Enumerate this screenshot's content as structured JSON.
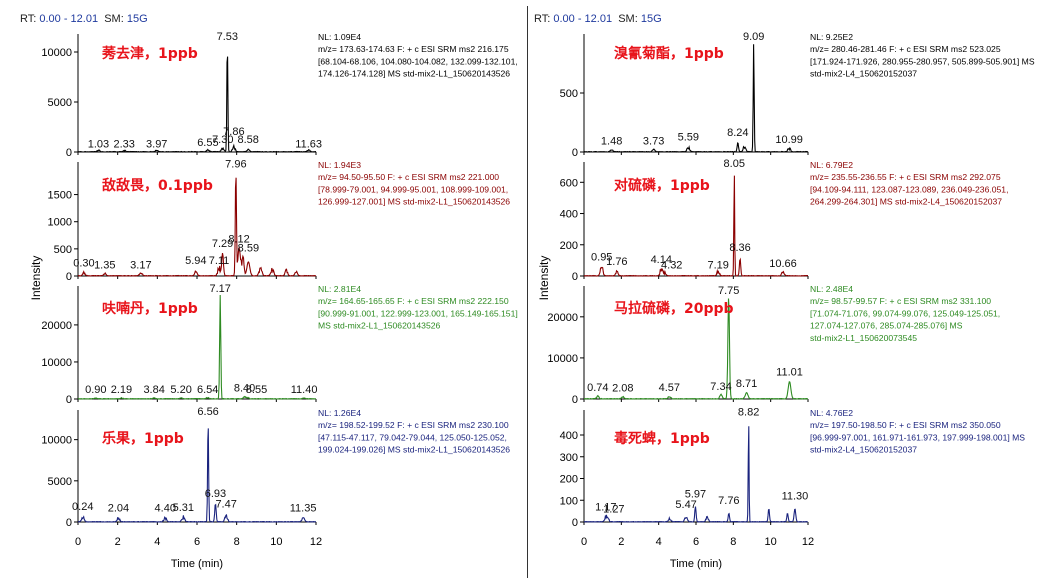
{
  "header": {
    "left": {
      "rt_label": "RT:",
      "rt_value": "0.00 - 12.01",
      "sm_label": "SM:",
      "sm_value": "15G"
    },
    "right": {
      "rt_label": "RT:",
      "rt_value": "0.00 - 12.01",
      "sm_label": "SM:",
      "sm_value": "15G"
    }
  },
  "axes": {
    "left": {
      "ylabel": "Intensity",
      "xlabel": "Time (min)",
      "xticks": [
        0,
        2,
        4,
        6,
        8,
        10,
        12
      ]
    },
    "right": {
      "ylabel": "Intensity",
      "xlabel": "Time (min)",
      "xticks": [
        0,
        2,
        4,
        6,
        8,
        10,
        12
      ]
    }
  },
  "chart_data": [
    {
      "type": "line",
      "column": "left",
      "row": 0,
      "color": "#000000",
      "compound": "莠去津，1ppb",
      "info": [
        "NL: 1.09E4",
        "m/z= 173.63-174.63 F: + c ESI SRM ms2 216.175",
        "[68.104-68.106, 104.080-104.082, 132.099-132.101,",
        "174.126-174.128]  MS std-mix2-L1_150620143526"
      ],
      "ylim": [
        0,
        11800
      ],
      "yticks": [
        0,
        5000,
        10000
      ],
      "xlim": [
        0,
        12
      ],
      "peaks": [
        [
          7.53,
          10900,
          0.035
        ]
      ],
      "noise": [
        [
          1.03,
          140
        ],
        [
          2.33,
          120
        ],
        [
          3.97,
          160
        ],
        [
          6.55,
          210
        ],
        [
          7.3,
          380
        ],
        [
          7.86,
          520
        ],
        [
          8.58,
          250
        ],
        [
          11.63,
          160
        ]
      ],
      "labels": [
        {
          "t": "7.53",
          "x": 7.53,
          "y": 10900
        },
        {
          "t": "1.03",
          "x": 1.03,
          "y": 150
        },
        {
          "t": "2.33",
          "x": 2.33,
          "y": 150
        },
        {
          "t": "3.97",
          "x": 3.97,
          "y": 150
        },
        {
          "t": "6.55",
          "x": 6.55,
          "y": 300
        },
        {
          "t": "7.30",
          "x": 7.3,
          "y": 600
        },
        {
          "t": "7.86",
          "x": 7.86,
          "y": 1400
        },
        {
          "t": "8.58",
          "x": 8.58,
          "y": 600
        },
        {
          "t": "11.63",
          "x": 11.63,
          "y": 150
        }
      ]
    },
    {
      "type": "line",
      "column": "left",
      "row": 1,
      "color": "#8b0000",
      "compound": "敌敌畏，0.1ppb",
      "info": [
        "NL: 1.94E3",
        "m/z= 94.50-95.50 F: + c ESI SRM ms2 221.000",
        "[78.999-79.001, 94.999-95.001, 108.999-109.001,",
        "126.999-127.001]  MS std-mix2-L1_150620143526"
      ],
      "ylim": [
        0,
        2100
      ],
      "yticks": [
        0,
        500,
        1000,
        1500
      ],
      "xlim": [
        0,
        12
      ],
      "peaks": [
        [
          7.96,
          1940,
          0.04
        ],
        [
          7.29,
          420,
          0.06
        ],
        [
          8.12,
          520,
          0.08
        ],
        [
          8.59,
          260,
          0.1
        ]
      ],
      "noise": [
        [
          0.3,
          60
        ],
        [
          1.35,
          40
        ],
        [
          3.17,
          60
        ],
        [
          5.94,
          90
        ],
        [
          7.11,
          150
        ],
        [
          8.3,
          300
        ],
        [
          9.2,
          150
        ],
        [
          9.8,
          120
        ],
        [
          10.5,
          90
        ],
        [
          11.0,
          70
        ]
      ],
      "labels": [
        {
          "t": "7.96",
          "x": 7.96,
          "y": 1940
        },
        {
          "t": "0.30",
          "x": 0.3,
          "y": 120
        },
        {
          "t": "1.35",
          "x": 1.35,
          "y": 80
        },
        {
          "t": "3.17",
          "x": 3.17,
          "y": 80
        },
        {
          "t": "5.94",
          "x": 5.94,
          "y": 170
        },
        {
          "t": "7.11",
          "x": 7.11,
          "y": 170
        },
        {
          "t": "7.29",
          "x": 7.29,
          "y": 480
        },
        {
          "t": "8.12",
          "x": 8.12,
          "y": 560
        },
        {
          "t": "8.59",
          "x": 8.59,
          "y": 400
        }
      ]
    },
    {
      "type": "line",
      "column": "left",
      "row": 2,
      "color": "#2e8b22",
      "compound": "呋喃丹，1ppb",
      "info": [
        "NL: 2.81E4",
        "m/z= 164.65-165.65 F: + c ESI SRM ms2 222.150",
        "[90.999-91.001, 122.999-123.001, 165.149-165.151]",
        "MS std-mix2-L1_150620143526"
      ],
      "ylim": [
        0,
        30500
      ],
      "yticks": [
        0,
        10000,
        20000
      ],
      "xlim": [
        0,
        12
      ],
      "peaks": [
        [
          7.17,
          28100,
          0.04
        ]
      ],
      "noise": [
        [
          0.9,
          200
        ],
        [
          2.19,
          200
        ],
        [
          3.84,
          200
        ],
        [
          5.2,
          200
        ],
        [
          6.54,
          300
        ],
        [
          8.4,
          500
        ],
        [
          8.55,
          300
        ],
        [
          11.4,
          200
        ]
      ],
      "labels": [
        {
          "t": "7.17",
          "x": 7.17,
          "y": 28100
        },
        {
          "t": "0.90",
          "x": 0.9,
          "y": 800
        },
        {
          "t": "2.19",
          "x": 2.19,
          "y": 800
        },
        {
          "t": "3.84",
          "x": 3.84,
          "y": 800
        },
        {
          "t": "5.20",
          "x": 5.2,
          "y": 800
        },
        {
          "t": "6.54",
          "x": 6.54,
          "y": 800
        },
        {
          "t": "8.40",
          "x": 8.4,
          "y": 1200
        },
        {
          "t": "8.55",
          "x": 9.0,
          "y": 800
        },
        {
          "t": "11.40",
          "x": 11.4,
          "y": 800
        }
      ]
    },
    {
      "type": "line",
      "column": "left",
      "row": 3,
      "color": "#1a237e",
      "compound": "乐果，1ppb",
      "info": [
        "NL: 1.26E4",
        "m/z= 198.52-199.52 F: + c ESI SRM ms2 230.100",
        "[47.115-47.117, 79.042-79.044, 125.050-125.052,",
        "199.024-199.026]  MS std-mix2-L1_150620143526"
      ],
      "ylim": [
        0,
        13600
      ],
      "yticks": [
        0,
        5000,
        10000
      ],
      "xlim": [
        0,
        12
      ],
      "peaks": [
        [
          6.56,
          12600,
          0.035
        ],
        [
          6.93,
          2200,
          0.05
        ]
      ],
      "noise": [
        [
          0.24,
          600
        ],
        [
          2.04,
          500
        ],
        [
          4.4,
          500
        ],
        [
          5.31,
          600
        ],
        [
          7.47,
          700
        ],
        [
          11.35,
          500
        ]
      ],
      "labels": [
        {
          "t": "6.56",
          "x": 6.56,
          "y": 12600
        },
        {
          "t": "0.24",
          "x": 0.24,
          "y": 1100
        },
        {
          "t": "2.04",
          "x": 2.04,
          "y": 900
        },
        {
          "t": "4.40",
          "x": 4.4,
          "y": 900
        },
        {
          "t": "5.31",
          "x": 5.31,
          "y": 1000
        },
        {
          "t": "6.93",
          "x": 6.93,
          "y": 2700
        },
        {
          "t": "7.47",
          "x": 7.47,
          "y": 1400
        },
        {
          "t": "11.35",
          "x": 11.35,
          "y": 900
        }
      ]
    },
    {
      "type": "line",
      "column": "right",
      "row": 0,
      "color": "#000000",
      "compound": "溴氰菊酯，1ppb",
      "info": [
        "NL: 9.25E2",
        "m/z= 280.46-281.46 F: + c ESI SRM ms2 523.025",
        "[171.924-171.926, 280.955-280.957, 505.899-505.901]  MS",
        "std-mix2-L4_150620152037"
      ],
      "ylim": [
        0,
        1000
      ],
      "yticks": [
        0,
        500
      ],
      "xlim": [
        0,
        12
      ],
      "peaks": [
        [
          9.09,
          925,
          0.035
        ],
        [
          8.24,
          80,
          0.05
        ]
      ],
      "noise": [
        [
          1.48,
          20
        ],
        [
          3.73,
          20
        ],
        [
          5.59,
          40
        ],
        [
          8.6,
          50
        ],
        [
          10.99,
          30
        ]
      ],
      "labels": [
        {
          "t": "9.09",
          "x": 9.09,
          "y": 925
        },
        {
          "t": "1.48",
          "x": 1.48,
          "y": 40
        },
        {
          "t": "3.73",
          "x": 3.73,
          "y": 40
        },
        {
          "t": "5.59",
          "x": 5.59,
          "y": 70
        },
        {
          "t": "8.24",
          "x": 8.24,
          "y": 110
        },
        {
          "t": "10.99",
          "x": 10.99,
          "y": 50
        }
      ]
    },
    {
      "type": "line",
      "column": "right",
      "row": 1,
      "color": "#8b0000",
      "compound": "对硫磷，1ppb",
      "info": [
        "NL: 6.79E2",
        "m/z= 235.55-236.55 F: + c ESI SRM ms2 292.075",
        "[94.109-94.111, 123.087-123.089, 236.049-236.051,",
        "264.299-264.301]  MS std-mix2-L4_150620152037"
      ],
      "ylim": [
        0,
        730
      ],
      "yticks": [
        0,
        200,
        400,
        600
      ],
      "xlim": [
        0,
        12
      ],
      "peaks": [
        [
          8.05,
          679,
          0.03
        ],
        [
          8.36,
          110,
          0.05
        ]
      ],
      "noise": [
        [
          0.95,
          60
        ],
        [
          1.76,
          25
        ],
        [
          4.14,
          45
        ],
        [
          4.32,
          20
        ],
        [
          7.19,
          30
        ],
        [
          10.66,
          25
        ]
      ],
      "labels": [
        {
          "t": "8.05",
          "x": 8.05,
          "y": 679
        },
        {
          "t": "0.95",
          "x": 0.95,
          "y": 80
        },
        {
          "t": "1.76",
          "x": 1.76,
          "y": 50
        },
        {
          "t": "4.14",
          "x": 4.14,
          "y": 65
        },
        {
          "t": "4.32",
          "x": 4.7,
          "y": 30
        },
        {
          "t": "7.19",
          "x": 7.19,
          "y": 30
        },
        {
          "t": "8.36",
          "x": 8.36,
          "y": 140
        },
        {
          "t": "10.66",
          "x": 10.66,
          "y": 40
        }
      ]
    },
    {
      "type": "line",
      "column": "right",
      "row": 2,
      "color": "#2e8b22",
      "compound": "马拉硫磷，20ppb",
      "info": [
        "NL: 2.48E4",
        "m/z= 98.57-99.57 F: + c ESI SRM ms2 331.100",
        "[71.074-71.076, 99.074-99.076, 125.049-125.051,",
        "127.074-127.076, 285.074-285.076]  MS",
        "std-mix2-L1_150620073545"
      ],
      "ylim": [
        0,
        27500
      ],
      "yticks": [
        0,
        10000,
        20000
      ],
      "xlim": [
        0,
        12
      ],
      "peaks": [
        [
          7.75,
          24800,
          0.06
        ],
        [
          11.01,
          4200,
          0.1
        ],
        [
          8.71,
          1500,
          0.1
        ]
      ],
      "noise": [
        [
          0.74,
          600
        ],
        [
          2.08,
          500
        ],
        [
          4.57,
          600
        ],
        [
          7.34,
          900
        ]
      ],
      "labels": [
        {
          "t": "7.75",
          "x": 7.75,
          "y": 24800
        },
        {
          "t": "0.74",
          "x": 0.74,
          "y": 1200
        },
        {
          "t": "2.08",
          "x": 2.08,
          "y": 1100
        },
        {
          "t": "4.57",
          "x": 4.57,
          "y": 1200
        },
        {
          "t": "7.34",
          "x": 7.34,
          "y": 1400
        },
        {
          "t": "8.71",
          "x": 8.71,
          "y": 2200
        },
        {
          "t": "11.01",
          "x": 11.01,
          "y": 5000
        }
      ]
    },
    {
      "type": "line",
      "column": "right",
      "row": 3,
      "color": "#1a237e",
      "compound": "毒死蜱，1ppb",
      "info": [
        "NL: 4.76E2",
        "m/z= 197.50-198.50 F: + c ESI SRM ms2 350.050",
        "[96.999-97.001, 161.971-161.973, 197.999-198.001]  MS",
        "std-mix2-L4_150620152037"
      ],
      "ylim": [
        0,
        515
      ],
      "yticks": [
        0,
        100,
        200,
        300,
        400
      ],
      "xlim": [
        0,
        12
      ],
      "peaks": [
        [
          8.82,
          476,
          0.03
        ],
        [
          5.97,
          70,
          0.05
        ],
        [
          7.76,
          40,
          0.05
        ],
        [
          9.9,
          60,
          0.05
        ],
        [
          11.3,
          60,
          0.06
        ],
        [
          10.9,
          40,
          0.05
        ]
      ],
      "noise": [
        [
          1.17,
          20
        ],
        [
          1.27,
          15
        ],
        [
          5.47,
          25
        ],
        [
          4.6,
          15
        ],
        [
          6.6,
          20
        ]
      ],
      "labels": [
        {
          "t": "8.82",
          "x": 8.82,
          "y": 476
        },
        {
          "t": "1.17",
          "x": 1.17,
          "y": 40
        },
        {
          "t": "1.27",
          "x": 1.6,
          "y": 30
        },
        {
          "t": "5.47",
          "x": 5.47,
          "y": 50
        },
        {
          "t": "5.97",
          "x": 5.97,
          "y": 100
        },
        {
          "t": "7.76",
          "x": 7.76,
          "y": 70
        },
        {
          "t": "11.30",
          "x": 11.3,
          "y": 90
        }
      ]
    }
  ]
}
